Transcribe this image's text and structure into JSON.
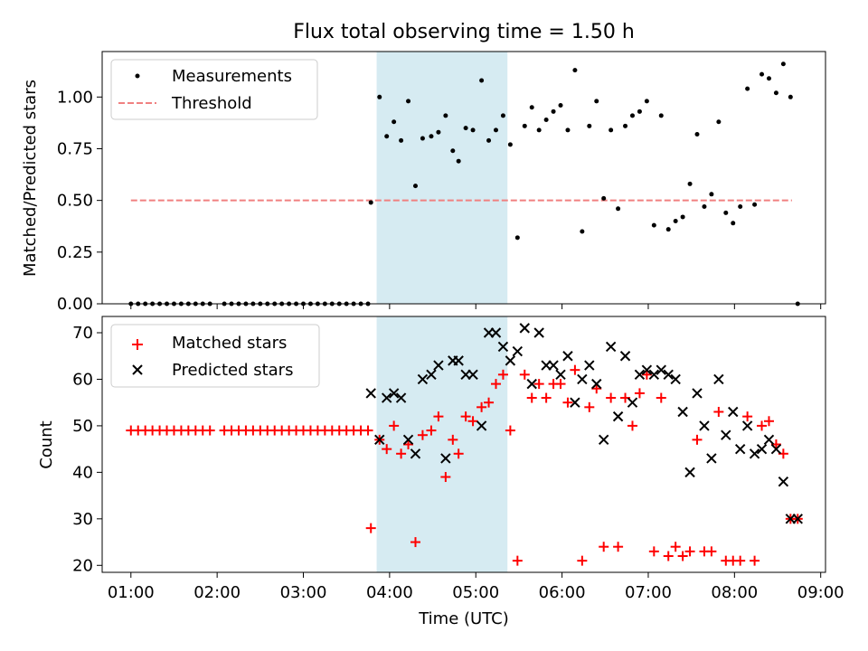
{
  "chart_data": {
    "type": "scatter",
    "title": "Flux total observing time = 1.50 h",
    "xlabel": "Time (UTC)",
    "x_ticks": [
      "01:00",
      "02:00",
      "03:00",
      "04:00",
      "05:00",
      "06:00",
      "07:00",
      "08:00",
      "09:00"
    ],
    "highlight_span": {
      "start": "03:51",
      "end": "05:22",
      "color": "#add8e6"
    },
    "top_panel": {
      "ylabel": "Matched/Predicted stars",
      "ylim": [
        0,
        1.22
      ],
      "y_ticks": [
        "0.00",
        "0.25",
        "0.50",
        "0.75",
        "1.00"
      ],
      "legend": {
        "position": "top-left",
        "entries": [
          "Measurements",
          "Threshold"
        ]
      },
      "threshold": {
        "name": "Threshold",
        "value": 0.5,
        "x_start": "01:00",
        "x_end": "08:40",
        "color": "#f08080",
        "style": "dashed"
      },
      "series": [
        {
          "name": "Measurements",
          "marker": "dot",
          "color": "#000000",
          "points": [
            [
              "01:00",
              0
            ],
            [
              "01:05",
              0
            ],
            [
              "01:10",
              0
            ],
            [
              "01:15",
              0
            ],
            [
              "01:20",
              0
            ],
            [
              "01:25",
              0
            ],
            [
              "01:30",
              0
            ],
            [
              "01:35",
              0
            ],
            [
              "01:40",
              0
            ],
            [
              "01:45",
              0
            ],
            [
              "01:50",
              0
            ],
            [
              "01:55",
              0
            ],
            [
              "02:05",
              0
            ],
            [
              "02:10",
              0
            ],
            [
              "02:15",
              0
            ],
            [
              "02:20",
              0
            ],
            [
              "02:25",
              0
            ],
            [
              "02:30",
              0
            ],
            [
              "02:35",
              0
            ],
            [
              "02:40",
              0
            ],
            [
              "02:45",
              0
            ],
            [
              "02:50",
              0
            ],
            [
              "02:55",
              0
            ],
            [
              "03:00",
              0
            ],
            [
              "03:05",
              0
            ],
            [
              "03:10",
              0
            ],
            [
              "03:15",
              0
            ],
            [
              "03:20",
              0
            ],
            [
              "03:25",
              0
            ],
            [
              "03:30",
              0
            ],
            [
              "03:35",
              0
            ],
            [
              "03:40",
              0
            ],
            [
              "03:45",
              0
            ],
            [
              "03:47",
              0.49
            ],
            [
              "03:53",
              1.0
            ],
            [
              "03:58",
              0.81
            ],
            [
              "04:03",
              0.88
            ],
            [
              "04:08",
              0.79
            ],
            [
              "04:13",
              0.98
            ],
            [
              "04:18",
              0.57
            ],
            [
              "04:23",
              0.8
            ],
            [
              "04:29",
              0.81
            ],
            [
              "04:34",
              0.83
            ],
            [
              "04:39",
              0.91
            ],
            [
              "04:44",
              0.74
            ],
            [
              "04:48",
              0.69
            ],
            [
              "04:53",
              0.85
            ],
            [
              "04:58",
              0.84
            ],
            [
              "05:04",
              1.08
            ],
            [
              "05:09",
              0.79
            ],
            [
              "05:14",
              0.84
            ],
            [
              "05:19",
              0.91
            ],
            [
              "05:24",
              0.77
            ],
            [
              "05:29",
              0.32
            ],
            [
              "05:34",
              0.86
            ],
            [
              "05:39",
              0.95
            ],
            [
              "05:44",
              0.84
            ],
            [
              "05:49",
              0.89
            ],
            [
              "05:54",
              0.93
            ],
            [
              "05:59",
              0.96
            ],
            [
              "06:04",
              0.84
            ],
            [
              "06:09",
              1.13
            ],
            [
              "06:14",
              0.35
            ],
            [
              "06:19",
              0.86
            ],
            [
              "06:24",
              0.98
            ],
            [
              "06:29",
              0.51
            ],
            [
              "06:34",
              0.84
            ],
            [
              "06:39",
              0.46
            ],
            [
              "06:44",
              0.86
            ],
            [
              "06:49",
              0.91
            ],
            [
              "06:54",
              0.93
            ],
            [
              "06:59",
              0.98
            ],
            [
              "07:04",
              0.38
            ],
            [
              "07:09",
              0.91
            ],
            [
              "07:14",
              0.36
            ],
            [
              "07:19",
              0.4
            ],
            [
              "07:24",
              0.42
            ],
            [
              "07:29",
              0.58
            ],
            [
              "07:34",
              0.82
            ],
            [
              "07:39",
              0.47
            ],
            [
              "07:44",
              0.53
            ],
            [
              "07:49",
              0.88
            ],
            [
              "07:54",
              0.44
            ],
            [
              "07:59",
              0.39
            ],
            [
              "08:04",
              0.47
            ],
            [
              "08:09",
              1.04
            ],
            [
              "08:14",
              0.48
            ],
            [
              "08:19",
              1.11
            ],
            [
              "08:24",
              1.09
            ],
            [
              "08:29",
              1.02
            ],
            [
              "08:34",
              1.16
            ],
            [
              "08:39",
              1.0
            ],
            [
              "08:44",
              0
            ]
          ]
        }
      ]
    },
    "bottom_panel": {
      "ylabel": "Count",
      "ylim": [
        18.5,
        73.5
      ],
      "y_ticks": [
        "20",
        "30",
        "40",
        "50",
        "60",
        "70"
      ],
      "legend": {
        "position": "top-left",
        "entries": [
          "Matched stars",
          "Predicted stars"
        ]
      },
      "series": [
        {
          "name": "Matched stars",
          "marker": "plus",
          "color": "#ff0000",
          "points": [
            [
              "01:00",
              49
            ],
            [
              "01:05",
              49
            ],
            [
              "01:10",
              49
            ],
            [
              "01:15",
              49
            ],
            [
              "01:20",
              49
            ],
            [
              "01:25",
              49
            ],
            [
              "01:30",
              49
            ],
            [
              "01:35",
              49
            ],
            [
              "01:40",
              49
            ],
            [
              "01:45",
              49
            ],
            [
              "01:50",
              49
            ],
            [
              "01:55",
              49
            ],
            [
              "02:05",
              49
            ],
            [
              "02:10",
              49
            ],
            [
              "02:15",
              49
            ],
            [
              "02:20",
              49
            ],
            [
              "02:25",
              49
            ],
            [
              "02:30",
              49
            ],
            [
              "02:35",
              49
            ],
            [
              "02:40",
              49
            ],
            [
              "02:45",
              49
            ],
            [
              "02:50",
              49
            ],
            [
              "02:55",
              49
            ],
            [
              "03:00",
              49
            ],
            [
              "03:05",
              49
            ],
            [
              "03:10",
              49
            ],
            [
              "03:15",
              49
            ],
            [
              "03:20",
              49
            ],
            [
              "03:25",
              49
            ],
            [
              "03:30",
              49
            ],
            [
              "03:35",
              49
            ],
            [
              "03:40",
              49
            ],
            [
              "03:45",
              49
            ],
            [
              "03:47",
              28
            ],
            [
              "03:53",
              47
            ],
            [
              "03:58",
              45
            ],
            [
              "04:03",
              50
            ],
            [
              "04:08",
              44
            ],
            [
              "04:13",
              46
            ],
            [
              "04:18",
              25
            ],
            [
              "04:23",
              48
            ],
            [
              "04:29",
              49
            ],
            [
              "04:34",
              52
            ],
            [
              "04:39",
              39
            ],
            [
              "04:44",
              47
            ],
            [
              "04:48",
              44
            ],
            [
              "04:53",
              52
            ],
            [
              "04:58",
              51
            ],
            [
              "05:04",
              54
            ],
            [
              "05:09",
              55
            ],
            [
              "05:14",
              59
            ],
            [
              "05:19",
              61
            ],
            [
              "05:24",
              49
            ],
            [
              "05:29",
              21
            ],
            [
              "05:34",
              61
            ],
            [
              "05:39",
              56
            ],
            [
              "05:44",
              59
            ],
            [
              "05:49",
              56
            ],
            [
              "05:54",
              59
            ],
            [
              "05:59",
              59
            ],
            [
              "06:04",
              55
            ],
            [
              "06:09",
              62
            ],
            [
              "06:14",
              21
            ],
            [
              "06:19",
              54
            ],
            [
              "06:24",
              58
            ],
            [
              "06:29",
              24
            ],
            [
              "06:34",
              56
            ],
            [
              "06:39",
              24
            ],
            [
              "06:44",
              56
            ],
            [
              "06:49",
              50
            ],
            [
              "06:54",
              57
            ],
            [
              "06:59",
              61
            ],
            [
              "07:04",
              23
            ],
            [
              "07:09",
              56
            ],
            [
              "07:14",
              22
            ],
            [
              "07:19",
              24
            ],
            [
              "07:24",
              22
            ],
            [
              "07:29",
              23
            ],
            [
              "07:34",
              47
            ],
            [
              "07:39",
              23
            ],
            [
              "07:44",
              23
            ],
            [
              "07:49",
              53
            ],
            [
              "07:54",
              21
            ],
            [
              "07:59",
              21
            ],
            [
              "08:04",
              21
            ],
            [
              "08:09",
              52
            ],
            [
              "08:14",
              21
            ],
            [
              "08:19",
              50
            ],
            [
              "08:24",
              51
            ],
            [
              "08:29",
              46
            ],
            [
              "08:34",
              44
            ],
            [
              "08:39",
              30
            ],
            [
              "08:44",
              30
            ]
          ]
        },
        {
          "name": "Predicted stars",
          "marker": "x",
          "color": "#000000",
          "points": [
            [
              "03:47",
              57
            ],
            [
              "03:53",
              47
            ],
            [
              "03:58",
              56
            ],
            [
              "04:03",
              57
            ],
            [
              "04:08",
              56
            ],
            [
              "04:13",
              47
            ],
            [
              "04:18",
              44
            ],
            [
              "04:23",
              60
            ],
            [
              "04:29",
              61
            ],
            [
              "04:34",
              63
            ],
            [
              "04:39",
              43
            ],
            [
              "04:44",
              64
            ],
            [
              "04:48",
              64
            ],
            [
              "04:53",
              61
            ],
            [
              "04:58",
              61
            ],
            [
              "05:04",
              50
            ],
            [
              "05:09",
              70
            ],
            [
              "05:14",
              70
            ],
            [
              "05:19",
              67
            ],
            [
              "05:24",
              64
            ],
            [
              "05:29",
              66
            ],
            [
              "05:34",
              71
            ],
            [
              "05:39",
              59
            ],
            [
              "05:44",
              70
            ],
            [
              "05:49",
              63
            ],
            [
              "05:54",
              63
            ],
            [
              "05:59",
              61
            ],
            [
              "06:04",
              65
            ],
            [
              "06:09",
              55
            ],
            [
              "06:14",
              60
            ],
            [
              "06:19",
              63
            ],
            [
              "06:24",
              59
            ],
            [
              "06:29",
              47
            ],
            [
              "06:34",
              67
            ],
            [
              "06:39",
              52
            ],
            [
              "06:44",
              65
            ],
            [
              "06:49",
              55
            ],
            [
              "06:54",
              61
            ],
            [
              "06:59",
              62
            ],
            [
              "07:04",
              61
            ],
            [
              "07:09",
              62
            ],
            [
              "07:14",
              61
            ],
            [
              "07:19",
              60
            ],
            [
              "07:24",
              53
            ],
            [
              "07:29",
              40
            ],
            [
              "07:34",
              57
            ],
            [
              "07:39",
              50
            ],
            [
              "07:44",
              43
            ],
            [
              "07:49",
              60
            ],
            [
              "07:54",
              48
            ],
            [
              "07:59",
              53
            ],
            [
              "08:04",
              45
            ],
            [
              "08:09",
              50
            ],
            [
              "08:14",
              44
            ],
            [
              "08:19",
              45
            ],
            [
              "08:24",
              47
            ],
            [
              "08:29",
              45
            ],
            [
              "08:34",
              38
            ],
            [
              "08:39",
              30
            ],
            [
              "08:44",
              30
            ]
          ]
        }
      ]
    }
  }
}
